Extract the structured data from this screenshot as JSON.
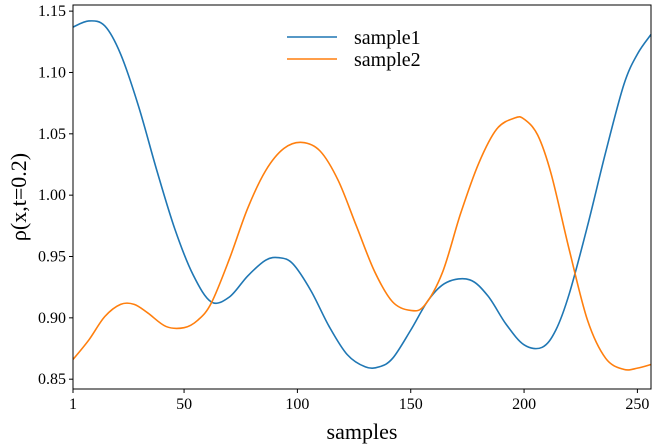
{
  "chart_data": {
    "type": "line",
    "xlabel": "samples",
    "ylabel": "ρ(x,t=0.2)",
    "xlim": [
      1,
      256
    ],
    "ylim": [
      0.842,
      1.155
    ],
    "xticks": [
      {
        "value": 1,
        "label": "1"
      },
      {
        "value": 50,
        "label": "50"
      },
      {
        "value": 100,
        "label": "100"
      },
      {
        "value": 150,
        "label": "150"
      },
      {
        "value": 200,
        "label": "200"
      },
      {
        "value": 250,
        "label": "250"
      }
    ],
    "yticks": [
      {
        "value": 0.85,
        "label": "0.85"
      },
      {
        "value": 0.9,
        "label": "0.90"
      },
      {
        "value": 0.95,
        "label": "0.95"
      },
      {
        "value": 1.0,
        "label": "1.00"
      },
      {
        "value": 1.05,
        "label": "1.05"
      },
      {
        "value": 1.1,
        "label": "1.10"
      },
      {
        "value": 1.15,
        "label": "1.15"
      }
    ],
    "grid": false,
    "legend": "top-center",
    "series": [
      {
        "name": "sample1",
        "color": "#1f77b4",
        "x": [
          1,
          8,
          15,
          22,
          30,
          38,
          46,
          54,
          62,
          70,
          78,
          86,
          92,
          98,
          106,
          114,
          122,
          130,
          136,
          142,
          150,
          158,
          166,
          176,
          184,
          192,
          200,
          208,
          214,
          220,
          228,
          236,
          244,
          250,
          256
        ],
        "y": [
          1.137,
          1.142,
          1.138,
          1.115,
          1.072,
          1.02,
          0.972,
          0.935,
          0.913,
          0.917,
          0.934,
          0.947,
          0.949,
          0.944,
          0.922,
          0.893,
          0.87,
          0.86,
          0.86,
          0.867,
          0.89,
          0.915,
          0.929,
          0.931,
          0.918,
          0.895,
          0.878,
          0.876,
          0.89,
          0.92,
          0.975,
          1.035,
          1.09,
          1.115,
          1.131
        ]
      },
      {
        "name": "sample2",
        "color": "#ff7f0e",
        "x": [
          1,
          8,
          15,
          22,
          28,
          34,
          42,
          50,
          56,
          62,
          70,
          78,
          86,
          94,
          102,
          110,
          118,
          126,
          134,
          142,
          150,
          156,
          164,
          172,
          180,
          188,
          196,
          200,
          206,
          212,
          220,
          228,
          236,
          244,
          250,
          256
        ],
        "y": [
          0.866,
          0.882,
          0.901,
          0.911,
          0.911,
          0.904,
          0.893,
          0.892,
          0.898,
          0.912,
          0.948,
          0.989,
          1.02,
          1.038,
          1.043,
          1.036,
          1.012,
          0.975,
          0.938,
          0.913,
          0.906,
          0.91,
          0.937,
          0.985,
          1.026,
          1.054,
          1.063,
          1.062,
          1.049,
          1.017,
          0.955,
          0.898,
          0.867,
          0.858,
          0.859,
          0.862
        ]
      }
    ]
  }
}
